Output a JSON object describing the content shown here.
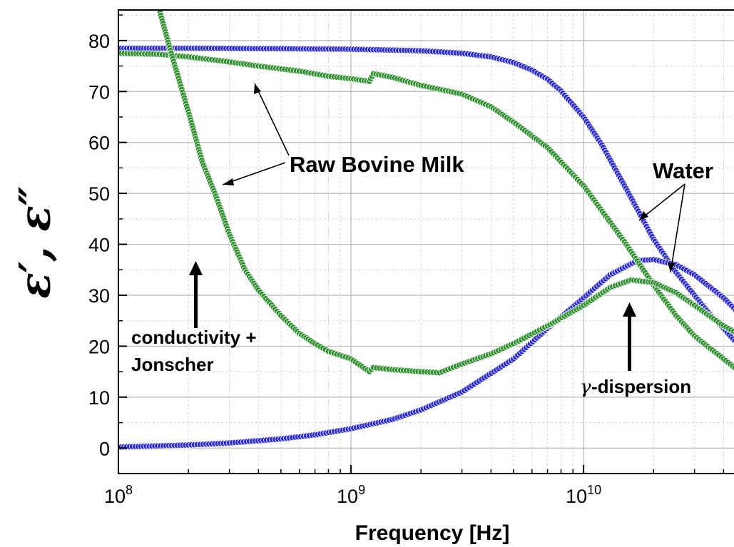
{
  "chart_data": {
    "type": "scatter",
    "xlabel": "Frequency [Hz]",
    "ylabel": "ε′, ε″",
    "x_scale": "log",
    "xlim": [
      100000000,
      50000000000
    ],
    "ylim": [
      -5,
      86
    ],
    "x_ticks": [
      {
        "value": 100000000,
        "base": "10",
        "exp": "8"
      },
      {
        "value": 1000000000,
        "base": "10",
        "exp": "9"
      },
      {
        "value": 10000000000,
        "base": "10",
        "exp": "10"
      }
    ],
    "y_ticks": [
      0,
      10,
      20,
      30,
      40,
      50,
      60,
      70,
      80
    ],
    "grid": true,
    "series": [
      {
        "color": "#2b2bd6",
        "points": [
          [
            100000000,
            78.5
          ],
          [
            200000000,
            78.5
          ],
          [
            500000000,
            78.4
          ],
          [
            1000000000,
            78.3
          ],
          [
            2000000000,
            78.0
          ],
          [
            3000000000,
            77.5
          ],
          [
            4000000000,
            76.8
          ],
          [
            5000000000,
            75.7
          ],
          [
            6000000000,
            74.2
          ],
          [
            7000000000,
            72.4
          ],
          [
            8000000000,
            70.1
          ],
          [
            10000000000,
            65.0
          ],
          [
            12000000000,
            59.5
          ],
          [
            15000000000,
            51.5
          ],
          [
            20000000000,
            41.0
          ],
          [
            25000000000,
            34.5
          ],
          [
            30000000000,
            30.0
          ],
          [
            35000000000,
            26.2
          ],
          [
            40000000000,
            23.5
          ],
          [
            50000000000,
            18.5
          ]
        ]
      },
      {
        "color": "#2b2bd6",
        "points": [
          [
            100000000,
            0.2
          ],
          [
            200000000,
            0.6
          ],
          [
            300000000,
            1.0
          ],
          [
            500000000,
            1.8
          ],
          [
            700000000,
            2.6
          ],
          [
            1000000000,
            3.8
          ],
          [
            1500000000,
            5.6
          ],
          [
            2000000000,
            7.5
          ],
          [
            3000000000,
            11.0
          ],
          [
            5000000000,
            17.5
          ],
          [
            7000000000,
            23.5
          ],
          [
            10000000000,
            29.5
          ],
          [
            13000000000,
            34.0
          ],
          [
            17000000000,
            36.8
          ],
          [
            20000000000,
            37.0
          ],
          [
            25000000000,
            36.0
          ],
          [
            30000000000,
            34.0
          ],
          [
            40000000000,
            29.5
          ],
          [
            50000000000,
            25.0
          ]
        ]
      },
      {
        "color": "#2f8f2f",
        "points": [
          [
            100000000,
            77.5
          ],
          [
            150000000,
            77.3
          ],
          [
            200000000,
            76.8
          ],
          [
            300000000,
            75.8
          ],
          [
            400000000,
            75.0
          ],
          [
            600000000,
            74.0
          ],
          [
            800000000,
            73.0
          ],
          [
            1000000000,
            72.5
          ],
          [
            1200000000,
            72.0
          ],
          [
            1250000000,
            73.5
          ],
          [
            1500000000,
            72.8
          ],
          [
            2000000000,
            71.2
          ],
          [
            3000000000,
            69.5
          ],
          [
            4000000000,
            67.0
          ],
          [
            5000000000,
            64.0
          ],
          [
            7000000000,
            59.0
          ],
          [
            10000000000,
            51.5
          ],
          [
            15000000000,
            40.5
          ],
          [
            20000000000,
            32.0
          ],
          [
            25000000000,
            26.0
          ],
          [
            30000000000,
            22.0
          ],
          [
            40000000000,
            17.5
          ],
          [
            50000000000,
            14.0
          ]
        ]
      },
      {
        "color": "#2f8f2f",
        "points": [
          [
            150000000,
            86.0
          ],
          [
            170000000,
            77.0
          ],
          [
            200000000,
            66.0
          ],
          [
            230000000,
            56.0
          ],
          [
            260000000,
            50.0
          ],
          [
            300000000,
            42.0
          ],
          [
            350000000,
            35.0
          ],
          [
            400000000,
            31.0
          ],
          [
            500000000,
            26.0
          ],
          [
            600000000,
            22.5
          ],
          [
            700000000,
            20.5
          ],
          [
            800000000,
            19.0
          ],
          [
            1000000000,
            17.5
          ],
          [
            1200000000,
            15.0
          ],
          [
            1250000000,
            15.8
          ],
          [
            1500000000,
            15.4
          ],
          [
            2000000000,
            15.0
          ],
          [
            2400000000,
            14.8
          ],
          [
            3000000000,
            16.5
          ],
          [
            4000000000,
            18.5
          ],
          [
            5000000000,
            20.5
          ],
          [
            7000000000,
            24.0
          ],
          [
            10000000000,
            28.0
          ],
          [
            13000000000,
            31.5
          ],
          [
            16000000000,
            33.0
          ],
          [
            20000000000,
            32.5
          ],
          [
            25000000000,
            30.5
          ],
          [
            30000000000,
            28.0
          ],
          [
            40000000000,
            24.0
          ],
          [
            50000000000,
            21.5
          ]
        ]
      }
    ],
    "annotations": {
      "milk": "Raw Bovine Milk",
      "water": "Water",
      "cond_line1": "conductivity +",
      "cond_line2": "Jonscher",
      "gamma_symbol": "γ",
      "gamma_text": "-dispersion"
    }
  }
}
